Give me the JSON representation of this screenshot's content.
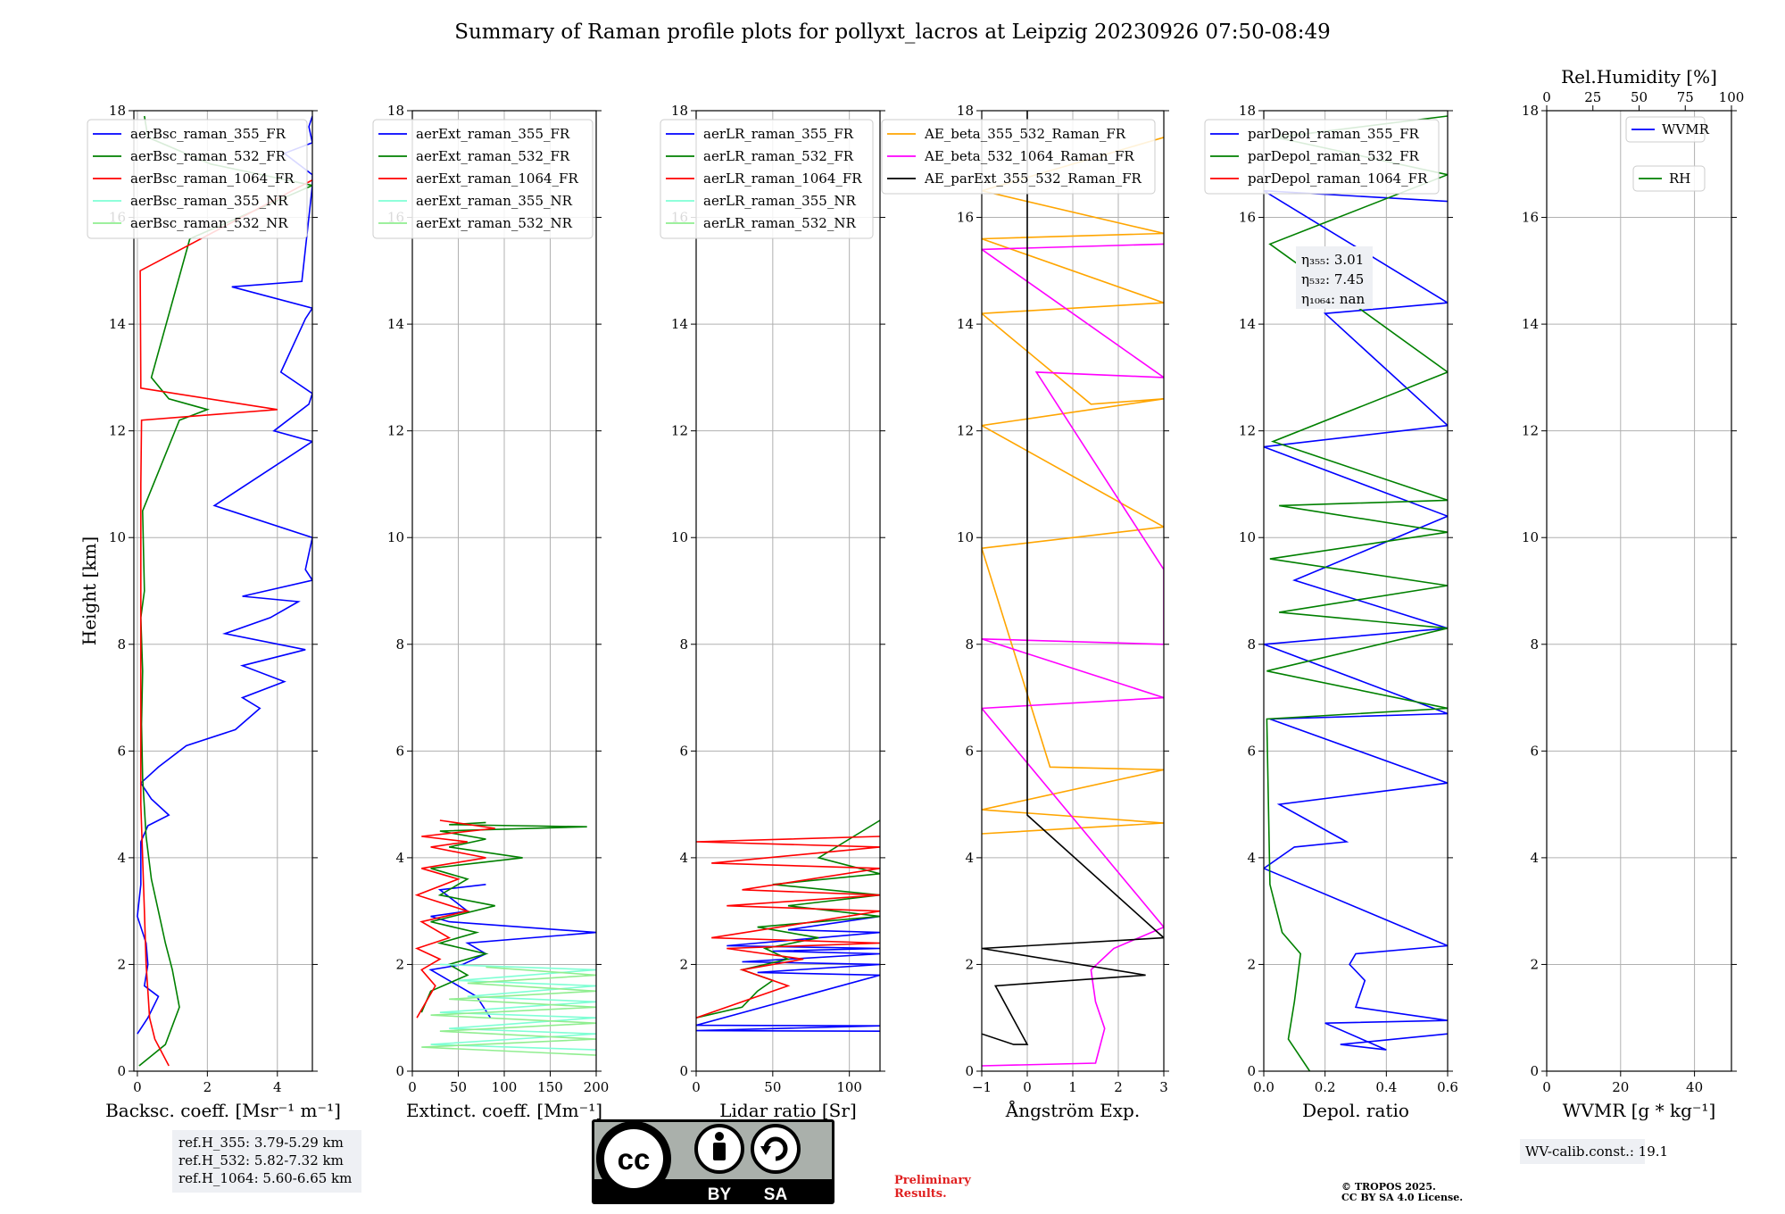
{
  "title": "Summary of Raman profile plots for pollyxt_lacros at Leipzig 20230926 07:50-08:49",
  "colors": {
    "blue": "#0000ff",
    "green": "#008000",
    "red": "#ff0000",
    "cyan": "#7fffd4",
    "lightgreen": "#90ee90",
    "orange": "#ffa500",
    "magenta": "#ff00ff",
    "black": "#000000",
    "grid": "#b0b0b0"
  },
  "chart_data": [
    {
      "type": "line",
      "id": "bsc",
      "xlabel": "Backsc. coeff. [Msr⁻¹ m⁻¹]",
      "ylabel": "Height [km]",
      "xlim": [
        -0.1,
        5
      ],
      "ylim": [
        0,
        18
      ],
      "xticks": [
        0,
        2,
        4
      ],
      "xticklabels": [
        "0",
        "2",
        "4"
      ],
      "yticks": [
        0,
        2,
        4,
        6,
        8,
        10,
        12,
        14,
        16,
        18
      ],
      "legend": [
        "aerBsc_raman_355_FR",
        "aerBsc_raman_532_FR",
        "aerBsc_raman_1064_FR",
        "aerBsc_raman_355_NR",
        "aerBsc_raman_532_NR"
      ],
      "legend_colors": [
        "blue",
        "green",
        "red",
        "cyan",
        "lightgreen"
      ],
      "series": [
        {
          "name": "aerBsc_raman_355_FR",
          "color": "blue",
          "x": [
            0.0,
            0.3,
            0.6,
            0.2,
            0.3,
            0.25,
            0.0,
            0.1,
            0.1,
            0.3,
            0.9,
            0.4,
            0.1,
            0.6,
            1.4,
            2.8,
            3.5,
            3.0,
            4.2,
            3.0,
            4.8,
            2.5,
            3.8,
            4.6,
            3.0,
            5.0,
            4.8,
            5.0,
            2.2,
            5.0,
            3.9,
            4.9,
            5.0,
            4.1,
            4.8,
            5.0,
            2.7,
            4.7,
            5.0,
            5.0,
            4.2,
            5.0,
            4.9,
            5.0
          ],
          "y": [
            0.7,
            1.0,
            1.4,
            1.6,
            2.0,
            2.4,
            2.9,
            3.5,
            4.3,
            4.6,
            4.8,
            5.1,
            5.4,
            5.7,
            6.1,
            6.4,
            6.8,
            7.0,
            7.3,
            7.6,
            7.9,
            8.2,
            8.5,
            8.8,
            8.9,
            9.2,
            9.4,
            10.0,
            10.6,
            11.8,
            12.0,
            12.5,
            12.7,
            13.1,
            14.1,
            14.3,
            14.7,
            14.8,
            16.6,
            16.8,
            17.2,
            17.4,
            17.7,
            17.9
          ]
        },
        {
          "name": "aerBsc_raman_532_FR",
          "color": "green",
          "x": [
            0.05,
            0.8,
            1.2,
            1.0,
            0.8,
            0.6,
            0.4,
            0.25,
            0.15,
            0.12,
            0.15,
            0.1,
            0.2,
            0.15,
            1.2,
            2.0,
            0.9,
            0.4,
            1.5,
            5.0,
            2.1,
            0.3,
            0.2
          ],
          "y": [
            0.1,
            0.5,
            1.2,
            1.9,
            2.4,
            3.0,
            3.6,
            4.4,
            5.5,
            6.5,
            7.5,
            8.5,
            9.0,
            10.5,
            12.2,
            12.4,
            12.6,
            13.0,
            15.6,
            16.6,
            17.0,
            17.5,
            17.9
          ]
        },
        {
          "name": "aerBsc_raman_1064_FR",
          "color": "red",
          "x": [
            0.9,
            0.5,
            0.35,
            0.3,
            0.25,
            0.2,
            0.15,
            0.1,
            0.1,
            0.1,
            0.1,
            0.12,
            4.0,
            0.1,
            0.08,
            5.0
          ],
          "y": [
            0.1,
            0.6,
            1.0,
            1.5,
            2.0,
            3.0,
            4.0,
            5.0,
            7.0,
            9.0,
            11.0,
            12.2,
            12.4,
            12.8,
            15.0,
            16.7
          ]
        },
        {
          "name": "aerBsc_raman_355_NR",
          "color": "cyan",
          "x": [],
          "y": []
        },
        {
          "name": "aerBsc_raman_532_NR",
          "color": "lightgreen",
          "x": [],
          "y": []
        }
      ],
      "annotations": [
        "ref.H_355: 3.79-5.29 km",
        "ref.H_532: 5.82-7.32 km",
        "ref.H_1064: 5.60-6.65 km"
      ]
    },
    {
      "type": "line",
      "id": "ext",
      "xlabel": "Extinct. coeff. [Mm⁻¹]",
      "xlim": [
        0,
        200
      ],
      "ylim": [
        0,
        18
      ],
      "xticks": [
        0,
        50,
        100,
        150,
        200
      ],
      "xticklabels": [
        "0",
        "50",
        "100",
        "150",
        "200"
      ],
      "yticks": [
        0,
        2,
        4,
        6,
        8,
        10,
        12,
        14,
        16,
        18
      ],
      "legend": [
        "aerExt_raman_355_FR",
        "aerExt_raman_532_FR",
        "aerExt_raman_1064_FR",
        "aerExt_raman_355_NR",
        "aerExt_raman_532_NR"
      ],
      "legend_colors": [
        "blue",
        "green",
        "red",
        "cyan",
        "lightgreen"
      ],
      "series": [
        {
          "name": "aerExt_raman_355_FR",
          "color": "blue",
          "x": [
            85,
            70,
            40,
            20,
            55,
            80,
            60,
            200,
            40,
            20,
            60,
            30,
            80
          ],
          "y": [
            1.0,
            1.4,
            1.7,
            1.9,
            2.0,
            2.2,
            2.4,
            2.6,
            2.8,
            2.9,
            3.0,
            3.4,
            3.5
          ]
        },
        {
          "name": "aerExt_raman_532_FR",
          "color": "green",
          "x": [
            10,
            20,
            60,
            40,
            80,
            30,
            70,
            20,
            90,
            30,
            60,
            20,
            120,
            40,
            80,
            30,
            190,
            40,
            80
          ],
          "y": [
            1.1,
            1.5,
            1.8,
            2.0,
            2.2,
            2.4,
            2.6,
            2.8,
            3.1,
            3.3,
            3.6,
            3.8,
            4.0,
            4.2,
            4.35,
            4.5,
            4.58,
            4.62,
            4.66
          ]
        },
        {
          "name": "aerExt_raman_1064_FR",
          "color": "red",
          "x": [
            5,
            15,
            25,
            10,
            30,
            5,
            40,
            10,
            60,
            5,
            50,
            10,
            80,
            20,
            60,
            10,
            90,
            30
          ],
          "y": [
            1.0,
            1.3,
            1.6,
            1.9,
            2.1,
            2.3,
            2.5,
            2.8,
            3.0,
            3.3,
            3.6,
            3.8,
            4.0,
            4.2,
            4.3,
            4.4,
            4.55,
            4.7
          ]
        },
        {
          "name": "aerExt_raman_355_NR",
          "color": "cyan",
          "x": [
            200,
            20,
            200,
            40,
            200,
            30,
            200,
            60,
            200,
            50,
            200,
            30
          ],
          "y": [
            0.4,
            0.5,
            0.7,
            0.8,
            1.0,
            1.1,
            1.3,
            1.4,
            1.6,
            1.7,
            1.9,
            2.0
          ]
        },
        {
          "name": "aerExt_raman_532_NR",
          "color": "lightgreen",
          "x": [
            200,
            10,
            200,
            30,
            200,
            20,
            200,
            40,
            200,
            60,
            200,
            80
          ],
          "y": [
            0.3,
            0.45,
            0.6,
            0.75,
            0.9,
            1.05,
            1.2,
            1.35,
            1.5,
            1.65,
            1.8,
            1.95
          ]
        }
      ]
    },
    {
      "type": "line",
      "id": "lr",
      "xlabel": "Lidar ratio [Sr]",
      "xlim": [
        0,
        120
      ],
      "ylim": [
        0,
        18
      ],
      "xticks": [
        0,
        50,
        100
      ],
      "xticklabels": [
        "0",
        "50",
        "100"
      ],
      "yticks": [
        0,
        2,
        4,
        6,
        8,
        10,
        12,
        14,
        16,
        18
      ],
      "legend": [
        "aerLR_raman_355_FR",
        "aerLR_raman_532_FR",
        "aerLR_raman_1064_FR",
        "aerLR_raman_355_NR",
        "aerLR_raman_532_NR"
      ],
      "legend_colors": [
        "blue",
        "green",
        "red",
        "cyan",
        "lightgreen"
      ],
      "series": [
        {
          "name": "aerLR_raman_355_FR",
          "color": "blue",
          "x": [
            120,
            0,
            120,
            0,
            120,
            40,
            120,
            30,
            120,
            50,
            120,
            20,
            120,
            60,
            120
          ],
          "y": [
            0.75,
            0.76,
            0.85,
            0.86,
            1.8,
            1.85,
            2.0,
            2.05,
            2.2,
            2.25,
            2.3,
            2.35,
            2.6,
            2.65,
            2.9
          ]
        },
        {
          "name": "aerLR_raman_532_FR",
          "color": "green",
          "x": [
            0,
            30,
            40,
            50,
            30,
            60,
            45,
            80,
            40,
            120,
            60,
            120,
            50,
            120,
            80,
            120
          ],
          "y": [
            1.0,
            1.2,
            1.5,
            1.7,
            1.9,
            2.1,
            2.3,
            2.5,
            2.7,
            2.9,
            3.1,
            3.3,
            3.5,
            3.7,
            4.0,
            4.7
          ]
        },
        {
          "name": "aerLR_raman_1064_FR",
          "color": "red",
          "x": [
            0,
            40,
            60,
            30,
            70,
            20,
            120,
            10,
            120,
            20,
            120,
            30,
            120,
            10,
            120,
            0,
            120
          ],
          "y": [
            1.0,
            1.4,
            1.6,
            1.9,
            2.1,
            2.3,
            2.4,
            2.5,
            3.0,
            3.1,
            3.3,
            3.4,
            3.8,
            3.9,
            4.2,
            4.3,
            4.4
          ]
        },
        {
          "name": "aerLR_raman_355_NR",
          "color": "cyan",
          "x": [],
          "y": []
        },
        {
          "name": "aerLR_raman_532_NR",
          "color": "lightgreen",
          "x": [],
          "y": []
        }
      ]
    },
    {
      "type": "line",
      "id": "ang",
      "xlabel": "Ångström Exp.",
      "xlim": [
        -1,
        3
      ],
      "ylim": [
        0,
        18
      ],
      "xticks": [
        -1,
        0,
        1,
        2,
        3
      ],
      "xticklabels": [
        "−1",
        "0",
        "1",
        "2",
        "3"
      ],
      "yticks": [
        0,
        2,
        4,
        6,
        8,
        10,
        12,
        14,
        16,
        18
      ],
      "legend": [
        "AE_beta_355_532_Raman_FR",
        "AE_beta_532_1064_Raman_FR",
        "AE_parExt_355_532_Raman_FR"
      ],
      "legend_colors": [
        "orange",
        "magenta",
        "black"
      ],
      "series": [
        {
          "name": "AE_beta_355_532_Raman_FR",
          "color": "orange",
          "x": [
            -1,
            3,
            -1,
            3,
            0.5,
            -1,
            3,
            -1,
            3,
            1.4,
            -1,
            3,
            -1,
            3,
            -1,
            3
          ],
          "y": [
            4.45,
            4.65,
            4.9,
            5.65,
            5.7,
            9.8,
            10.2,
            12.1,
            12.6,
            12.5,
            14.2,
            14.4,
            15.6,
            15.7,
            16.5,
            17.5
          ]
        },
        {
          "name": "AE_beta_532_1064_Raman_FR",
          "color": "magenta",
          "x": [
            -1,
            1.5,
            1.7,
            1.5,
            1.4,
            1.9,
            3.0,
            -1,
            3.0,
            -1,
            3.0,
            3,
            0.2,
            3,
            -1,
            3
          ],
          "y": [
            0.1,
            0.15,
            0.8,
            1.3,
            1.9,
            2.3,
            2.7,
            6.8,
            7.0,
            8.1,
            8.0,
            9.4,
            13.1,
            13.0,
            15.4,
            15.5
          ]
        },
        {
          "name": "AE_parExt_355_532_Raman_FR",
          "color": "black",
          "x": [
            -1,
            -0.3,
            0,
            -0.7,
            2.6,
            -1,
            3.0,
            0.0,
            0.0,
            0.0
          ],
          "y": [
            0.7,
            0.5,
            0.5,
            1.6,
            1.8,
            2.3,
            2.5,
            4.8,
            10.0,
            18.0
          ]
        }
      ]
    },
    {
      "type": "line",
      "id": "dep",
      "xlabel": "Depol. ratio",
      "xlim": [
        0,
        0.6
      ],
      "ylim": [
        0,
        18
      ],
      "xticks": [
        0,
        0.2,
        0.4,
        0.6
      ],
      "xticklabels": [
        "0.0",
        "0.2",
        "0.4",
        "0.6"
      ],
      "yticks": [
        0,
        2,
        4,
        6,
        8,
        10,
        12,
        14,
        16,
        18
      ],
      "legend": [
        "parDepol_raman_355_FR",
        "parDepol_raman_532_FR",
        "parDepol_raman_1064_FR"
      ],
      "legend_colors": [
        "blue",
        "green",
        "red"
      ],
      "series": [
        {
          "name": "parDepol_raman_355_FR",
          "color": "blue",
          "x": [
            0.6,
            0.25,
            0.4,
            0.2,
            0.6,
            0.3,
            0.33,
            0.28,
            0.3,
            0.6,
            0.0,
            0.1,
            0.27,
            0.05,
            0.6,
            0.02,
            0.6,
            0.0,
            0.6,
            0.1,
            0.6,
            0.0,
            0.6,
            0.2,
            0.6,
            0.0,
            0.6
          ],
          "y": [
            0.7,
            0.5,
            0.4,
            0.9,
            0.95,
            1.2,
            1.7,
            2.0,
            2.2,
            2.35,
            3.8,
            4.2,
            4.3,
            5.0,
            5.4,
            6.6,
            6.7,
            8.0,
            8.3,
            9.2,
            10.4,
            11.7,
            12.1,
            14.2,
            14.4,
            16.5,
            16.3
          ]
        },
        {
          "name": "parDepol_raman_532_FR",
          "color": "green",
          "x": [
            0.15,
            0.08,
            0.1,
            0.12,
            0.06,
            0.02,
            0.01,
            0.6,
            0.01,
            0.6,
            0.05,
            0.6,
            0.02,
            0.6,
            0.05,
            0.6,
            0.03,
            0.6,
            0.02,
            0.6,
            0.04,
            0.6
          ],
          "y": [
            0.0,
            0.6,
            1.3,
            2.2,
            2.6,
            3.5,
            6.6,
            6.8,
            7.5,
            8.3,
            8.6,
            9.1,
            9.6,
            10.1,
            10.6,
            10.7,
            11.8,
            13.1,
            15.5,
            16.8,
            17.5,
            17.9
          ]
        },
        {
          "name": "parDepol_raman_1064_FR",
          "color": "red",
          "x": [],
          "y": []
        }
      ],
      "annotations": [
        "η₃₅₅: 3.01",
        "η₅₃₂: 7.45",
        "η₁₀₆₄: nan"
      ]
    },
    {
      "type": "line",
      "id": "wv",
      "xlabel": "WVMR [g * kg⁻¹]",
      "toplabel": "Rel.Humidity [%]",
      "xlim": [
        0,
        50
      ],
      "ylim": [
        0,
        18
      ],
      "xticks": [
        0,
        20,
        40
      ],
      "xticklabels": [
        "0",
        "20",
        "40"
      ],
      "topticks": [
        0,
        25,
        50,
        75,
        100
      ],
      "toptick_labels": [
        "0",
        "25",
        "50",
        "75",
        "100"
      ],
      "yticks": [
        0,
        2,
        4,
        6,
        8,
        10,
        12,
        14,
        16,
        18
      ],
      "legend": [
        "WVMR",
        "RH"
      ],
      "legend_colors": [
        "blue",
        "green"
      ],
      "series": [
        {
          "name": "WVMR",
          "color": "blue",
          "x": [],
          "y": []
        },
        {
          "name": "RH",
          "color": "green",
          "x": [],
          "y": []
        }
      ],
      "annotations": [
        "WV-calib.const.: 19.1"
      ]
    }
  ],
  "footer": {
    "license_cc": "cc",
    "license_by": "BY",
    "license_sa": "SA",
    "preliminary_line1": "Preliminary",
    "preliminary_line2": "Results.",
    "copyright_line1": "© TROPOS 2025.",
    "copyright_line2": "CC BY SA 4.0 License."
  }
}
